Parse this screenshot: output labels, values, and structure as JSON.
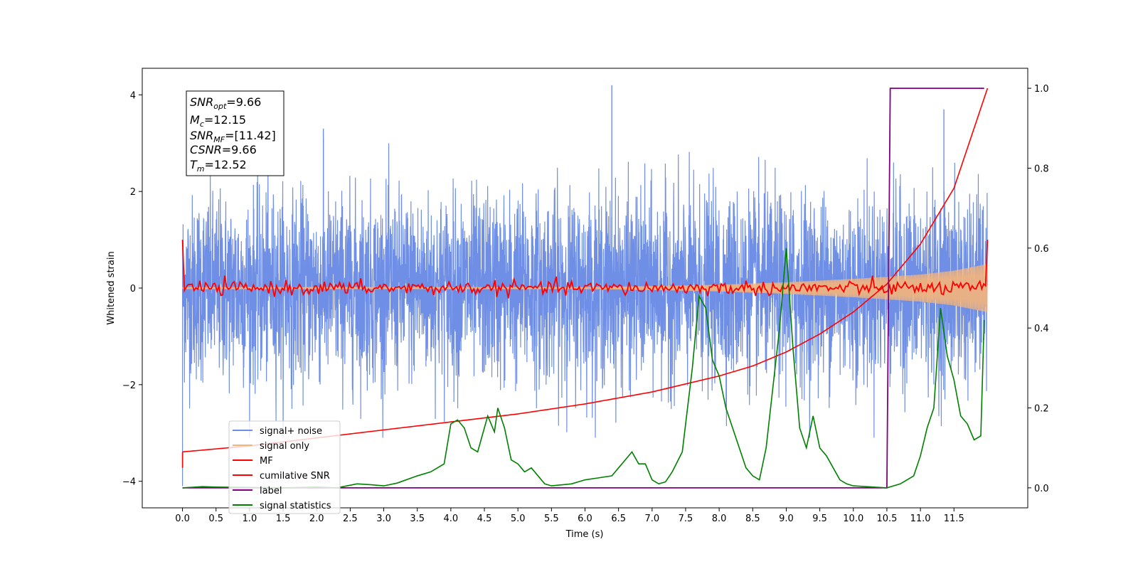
{
  "chart_data": {
    "type": "line",
    "xlabel": "Time (s)",
    "ylabel": "Whitened strain",
    "ylim_left": [
      -4.55,
      4.55
    ],
    "ylim_right": [
      -0.05,
      1.05
    ],
    "xlim": [
      -0.6,
      12.6
    ],
    "x_ticks": [
      "0.0",
      "0.5",
      "1.0",
      "1.5",
      "2.0",
      "2.5",
      "3.0",
      "3.5",
      "4.0",
      "4.5",
      "5.0",
      "5.5",
      "6.0",
      "6.5",
      "7.0",
      "7.5",
      "8.0",
      "8.5",
      "9.0",
      "9.5",
      "10.0",
      "10.5",
      "11.0",
      "11.5"
    ],
    "y_ticks_left": [
      "4",
      "2",
      "0",
      "−2",
      "−4"
    ],
    "y_ticks_right": [
      "1.0",
      "0.8",
      "0.6",
      "0.4",
      "0.2",
      "0.0"
    ],
    "grid": false,
    "legend_position": "lower-left",
    "info_box": {
      "snr_opt": "=9.66",
      "mc": "=12.15",
      "snr_mf": "=[11.42]",
      "csnr": "=9.66",
      "tm": "=12.52"
    },
    "series": [
      {
        "name": "signal+ noise",
        "color": "#6f8fe6",
        "axis": "left",
        "x_range": [
          0,
          12
        ],
        "amplitude_envelope": [
          2.3,
          3.0
        ],
        "description_values": {
          "peaks": [
            [
              6.4,
              4.2
            ],
            [
              11.35,
              3.7
            ],
            [
              2.1,
              3.3
            ]
          ]
        }
      },
      {
        "name": "signal only",
        "color": "#f5b57a",
        "axis": "left",
        "x": [
          0,
          6,
          7,
          8,
          9,
          10,
          11,
          11.5,
          12
        ],
        "envelope": [
          0.02,
          0.02,
          0.04,
          0.07,
          0.12,
          0.19,
          0.28,
          0.36,
          0.5
        ]
      },
      {
        "name": "MF",
        "color": "#ff0000",
        "axis": "left",
        "x_range": [
          0,
          12
        ],
        "start": 1.0,
        "end": 1.0,
        "baseline": 0.0,
        "wiggle": 0.12
      },
      {
        "name": "cumilative SNR",
        "color": "#ff0000",
        "axis": "right",
        "x": [
          0,
          1,
          2,
          3,
          4,
          5,
          6,
          7,
          8,
          8.5,
          9,
          9.5,
          10,
          10.5,
          11,
          11.5,
          12
        ],
        "y": [
          0.09,
          0.105,
          0.125,
          0.145,
          0.165,
          0.185,
          0.21,
          0.24,
          0.28,
          0.305,
          0.34,
          0.385,
          0.44,
          0.51,
          0.61,
          0.75,
          1.0
        ]
      },
      {
        "name": "label",
        "color": "#800080",
        "axis": "right",
        "x": [
          0,
          10.5,
          10.55,
          11.95
        ],
        "y": [
          0,
          0,
          1,
          1
        ]
      },
      {
        "name": "signal statistics",
        "color": "#008000",
        "axis": "right",
        "x": [
          0,
          0.3,
          0.5,
          1.0,
          1.5,
          2.0,
          2.3,
          2.6,
          2.8,
          3.0,
          3.2,
          3.5,
          3.7,
          3.9,
          4.0,
          4.1,
          4.2,
          4.3,
          4.4,
          4.45,
          4.55,
          4.65,
          4.7,
          4.8,
          4.9,
          5.0,
          5.1,
          5.2,
          5.3,
          5.4,
          5.5,
          5.8,
          6.0,
          6.2,
          6.4,
          6.5,
          6.6,
          6.7,
          6.8,
          6.9,
          7.0,
          7.1,
          7.2,
          7.3,
          7.45,
          7.6,
          7.7,
          7.8,
          7.9,
          8.0,
          8.1,
          8.2,
          8.3,
          8.4,
          8.5,
          8.6,
          8.7,
          8.8,
          8.9,
          9.0,
          9.1,
          9.2,
          9.3,
          9.4,
          9.5,
          9.6,
          9.7,
          9.8,
          9.9,
          10.0,
          10.5,
          10.7,
          10.9,
          11.0,
          11.1,
          11.2,
          11.3,
          11.4,
          11.5,
          11.6,
          11.7,
          11.8,
          11.9,
          11.95
        ],
        "y": [
          0.0,
          0.003,
          0.002,
          0.001,
          0.0,
          0.002,
          0.0,
          0.01,
          0.008,
          0.005,
          0.012,
          0.03,
          0.04,
          0.06,
          0.16,
          0.17,
          0.15,
          0.1,
          0.09,
          0.12,
          0.18,
          0.14,
          0.2,
          0.15,
          0.07,
          0.06,
          0.04,
          0.05,
          0.03,
          0.01,
          0.005,
          0.01,
          0.02,
          0.025,
          0.03,
          0.05,
          0.07,
          0.09,
          0.06,
          0.06,
          0.02,
          0.01,
          0.015,
          0.04,
          0.09,
          0.3,
          0.48,
          0.45,
          0.32,
          0.28,
          0.2,
          0.15,
          0.1,
          0.05,
          0.03,
          0.02,
          0.1,
          0.25,
          0.4,
          0.6,
          0.35,
          0.15,
          0.1,
          0.18,
          0.1,
          0.08,
          0.05,
          0.02,
          0.01,
          0.005,
          0.0,
          0.01,
          0.03,
          0.08,
          0.15,
          0.2,
          0.45,
          0.33,
          0.27,
          0.18,
          0.16,
          0.12,
          0.13,
          0.42
        ]
      }
    ]
  }
}
